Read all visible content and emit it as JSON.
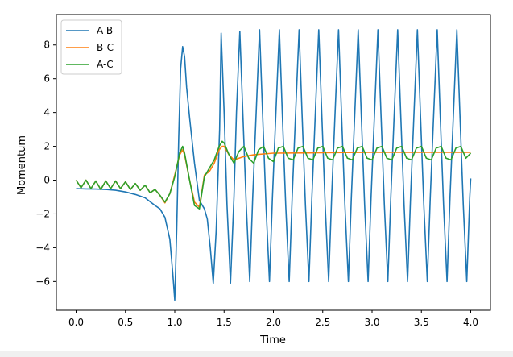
{
  "chart_data": {
    "type": "line",
    "title": "",
    "xlabel": "Time",
    "ylabel": "Momentum",
    "xlim": [
      -0.2,
      4.2
    ],
    "ylim": [
      -7.7,
      9.8
    ],
    "xticks": [
      0.0,
      0.5,
      1.0,
      1.5,
      2.0,
      2.5,
      3.0,
      3.5,
      4.0
    ],
    "xtick_labels": [
      "0.0",
      "0.5",
      "1.0",
      "1.5",
      "2.0",
      "2.5",
      "3.0",
      "3.5",
      "4.0"
    ],
    "yticks": [
      -6,
      -4,
      -2,
      0,
      2,
      4,
      6,
      8
    ],
    "ytick_labels": [
      "−6",
      "−4",
      "−2",
      "0",
      "2",
      "4",
      "6",
      "8"
    ],
    "grid": false,
    "legend_position": "top-left",
    "series": [
      {
        "name": "A-B",
        "color": "#1f77b4",
        "x": [
          0.0,
          0.1,
          0.2,
          0.3,
          0.4,
          0.5,
          0.6,
          0.7,
          0.8,
          0.85,
          0.9,
          0.95,
          0.98,
          1.0,
          1.02,
          1.04,
          1.06,
          1.08,
          1.1,
          1.12,
          1.15,
          1.2,
          1.25,
          1.3,
          1.33,
          1.36,
          1.39,
          1.42,
          1.455,
          1.47,
          1.5,
          1.53,
          1.565,
          1.6,
          1.625,
          1.66,
          1.69,
          1.725,
          1.76,
          1.79,
          1.825,
          1.86,
          1.89,
          1.925,
          1.96,
          1.99,
          2.025,
          2.06,
          2.09,
          2.125,
          2.16,
          2.19,
          2.225,
          2.26,
          2.29,
          2.325,
          2.36,
          2.39,
          2.425,
          2.46,
          2.49,
          2.525,
          2.56,
          2.59,
          2.625,
          2.66,
          2.69,
          2.725,
          2.76,
          2.79,
          2.825,
          2.86,
          2.89,
          2.925,
          2.96,
          2.99,
          3.025,
          3.06,
          3.09,
          3.125,
          3.16,
          3.19,
          3.225,
          3.26,
          3.29,
          3.325,
          3.36,
          3.39,
          3.425,
          3.46,
          3.49,
          3.525,
          3.56,
          3.59,
          3.625,
          3.66,
          3.69,
          3.725,
          3.76,
          3.79,
          3.825,
          3.86,
          3.89,
          3.925,
          3.96,
          3.99,
          4.0
        ],
        "y": [
          -0.5,
          -0.52,
          -0.53,
          -0.55,
          -0.6,
          -0.7,
          -0.85,
          -1.05,
          -1.5,
          -1.7,
          -2.2,
          -3.5,
          -5.5,
          -7.1,
          -3.0,
          2.5,
          6.6,
          7.9,
          7.3,
          5.5,
          3.7,
          1.0,
          -1.2,
          -1.7,
          -2.3,
          -4.0,
          -6.1,
          -3.0,
          3.0,
          8.7,
          4.0,
          -1.5,
          -6.1,
          -1.0,
          4.0,
          8.8,
          4.0,
          -1.5,
          -6.0,
          -1.0,
          4.0,
          8.9,
          4.0,
          -1.5,
          -6.0,
          -1.0,
          4.0,
          8.9,
          4.0,
          -1.5,
          -6.0,
          -1.0,
          4.0,
          8.9,
          4.0,
          -1.5,
          -6.0,
          -1.0,
          4.0,
          8.9,
          4.0,
          -1.5,
          -6.0,
          -1.0,
          4.0,
          8.9,
          4.0,
          -1.5,
          -6.0,
          -1.0,
          4.0,
          8.9,
          4.0,
          -1.5,
          -6.0,
          -1.0,
          4.0,
          8.9,
          4.0,
          -1.5,
          -6.0,
          -1.0,
          4.0,
          8.9,
          4.0,
          -1.5,
          -6.0,
          -1.0,
          4.0,
          8.9,
          4.0,
          -1.5,
          -6.0,
          -1.0,
          4.0,
          8.9,
          4.0,
          -1.5,
          -6.0,
          -1.0,
          4.0,
          8.9,
          4.0,
          -1.5,
          -6.0,
          -1.0,
          0.1
        ]
      },
      {
        "name": "B-C",
        "color": "#ff7f0e",
        "x": [
          0.0,
          0.05,
          0.1,
          0.15,
          0.2,
          0.25,
          0.3,
          0.35,
          0.4,
          0.45,
          0.5,
          0.55,
          0.6,
          0.65,
          0.7,
          0.75,
          0.8,
          0.85,
          0.9,
          0.95,
          1.0,
          1.05,
          1.08,
          1.1,
          1.15,
          1.2,
          1.25,
          1.3,
          1.35,
          1.4,
          1.45,
          1.48,
          1.5,
          1.55,
          1.6,
          1.7,
          1.8,
          1.9,
          2.0,
          2.5,
          3.0,
          3.5,
          4.0
        ],
        "y": [
          0.0,
          -0.45,
          0.0,
          -0.5,
          -0.05,
          -0.55,
          -0.05,
          -0.5,
          -0.05,
          -0.5,
          -0.1,
          -0.55,
          -0.2,
          -0.6,
          -0.3,
          -0.75,
          -0.55,
          -0.9,
          -1.35,
          -0.8,
          0.3,
          1.5,
          1.8,
          1.5,
          0.0,
          -1.3,
          -1.6,
          0.3,
          0.5,
          1.0,
          1.8,
          2.0,
          2.0,
          1.5,
          1.2,
          1.4,
          1.5,
          1.55,
          1.6,
          1.62,
          1.65,
          1.65,
          1.65
        ]
      },
      {
        "name": "A-C",
        "color": "#2ca02c",
        "x": [
          0.0,
          0.05,
          0.1,
          0.15,
          0.2,
          0.25,
          0.3,
          0.35,
          0.4,
          0.45,
          0.5,
          0.55,
          0.6,
          0.65,
          0.7,
          0.75,
          0.8,
          0.85,
          0.9,
          0.95,
          1.0,
          1.05,
          1.08,
          1.1,
          1.15,
          1.2,
          1.25,
          1.3,
          1.35,
          1.4,
          1.45,
          1.48,
          1.5,
          1.55,
          1.6,
          1.65,
          1.7,
          1.75,
          1.8,
          1.85,
          1.9,
          1.95,
          2.0,
          2.05,
          2.1,
          2.15,
          2.2,
          2.25,
          2.3,
          2.35,
          2.4,
          2.45,
          2.5,
          2.55,
          2.6,
          2.65,
          2.7,
          2.75,
          2.8,
          2.85,
          2.9,
          2.95,
          3.0,
          3.05,
          3.1,
          3.15,
          3.2,
          3.25,
          3.3,
          3.35,
          3.4,
          3.45,
          3.5,
          3.55,
          3.6,
          3.65,
          3.7,
          3.75,
          3.8,
          3.85,
          3.9,
          3.95,
          4.0
        ],
        "y": [
          0.0,
          -0.45,
          0.0,
          -0.5,
          -0.05,
          -0.55,
          -0.05,
          -0.5,
          -0.05,
          -0.5,
          -0.1,
          -0.55,
          -0.2,
          -0.6,
          -0.3,
          -0.75,
          -0.55,
          -0.9,
          -1.3,
          -0.8,
          0.2,
          1.6,
          2.0,
          1.6,
          0.0,
          -1.5,
          -1.7,
          0.2,
          0.7,
          1.2,
          2.0,
          2.3,
          2.2,
          1.5,
          1.0,
          1.7,
          2.0,
          1.3,
          1.0,
          1.8,
          2.0,
          1.3,
          1.1,
          1.9,
          2.0,
          1.3,
          1.2,
          1.9,
          2.0,
          1.3,
          1.2,
          1.9,
          2.0,
          1.3,
          1.2,
          1.9,
          2.0,
          1.3,
          1.2,
          1.9,
          2.0,
          1.3,
          1.2,
          1.9,
          2.0,
          1.3,
          1.2,
          1.9,
          2.0,
          1.3,
          1.2,
          1.9,
          2.0,
          1.3,
          1.2,
          1.9,
          2.0,
          1.3,
          1.2,
          1.9,
          2.0,
          1.3,
          1.6
        ]
      }
    ]
  }
}
